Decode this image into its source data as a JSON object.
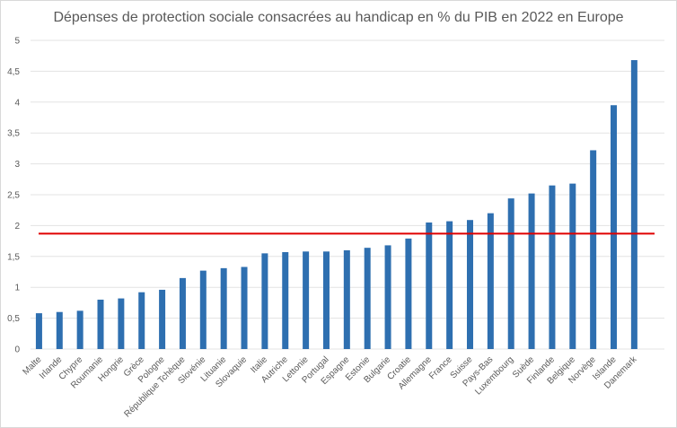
{
  "chart_data": {
    "type": "bar",
    "title": "Dépenses de protection sociale consacrées au handicap en % du PIB en 2022 en Europe",
    "xlabel": "",
    "ylabel": "",
    "ylim": [
      0,
      5
    ],
    "yticks": [
      "0",
      "0,5",
      "1",
      "1,5",
      "2",
      "2,5",
      "3",
      "3,5",
      "4",
      "4,5",
      "5"
    ],
    "grid": true,
    "categories": [
      "Malte",
      "Irlande",
      "Chypre",
      "Roumanie",
      "Hongrie",
      "Grèce",
      "Pologne",
      "République Tchèque",
      "Slovénie",
      "Lituanie",
      "Slovaquie",
      "Italie",
      "Autriche",
      "Lettonie",
      "Portugal",
      "Espagne",
      "Estonie",
      "Bulgarie",
      "Croatie",
      "Allemagne",
      "France",
      "Suisse",
      "Pays-Bas",
      "Luxembourg",
      "Suède",
      "Finlande",
      "Belgique",
      "Norvège",
      "Islande",
      "Danemark"
    ],
    "values": [
      0.58,
      0.6,
      0.62,
      0.8,
      0.82,
      0.92,
      0.96,
      1.15,
      1.27,
      1.31,
      1.33,
      1.55,
      1.57,
      1.58,
      1.58,
      1.6,
      1.64,
      1.68,
      1.79,
      2.05,
      2.07,
      2.09,
      2.2,
      2.44,
      2.52,
      2.65,
      2.68,
      3.22,
      3.95,
      4.68
    ],
    "reference_line": {
      "value": 1.87,
      "color": "#e00000"
    },
    "bar_color": "#2e6fb0"
  }
}
